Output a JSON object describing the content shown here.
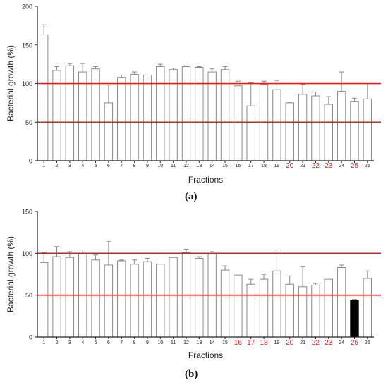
{
  "colors": {
    "bar_fill": "#ffffff",
    "bar_stroke": "#888888",
    "highlight_bar": "#000000",
    "ref_line": "#e01b1b",
    "highlight_label": "#e02020",
    "axis": "#222222"
  },
  "chart_data": [
    {
      "panel_label": "(a)",
      "type": "bar",
      "xlabel": "Fractions",
      "ylabel": "Bacterial growth (%)",
      "ylim": [
        0,
        200
      ],
      "yticks": [
        "0",
        "50",
        "100",
        "150",
        "200"
      ],
      "categories": [
        "1",
        "2",
        "3",
        "4",
        "5",
        "6",
        "7",
        "8",
        "9",
        "10",
        "11",
        "12",
        "13",
        "14",
        "15",
        "16",
        "17",
        "18",
        "19",
        "20",
        "21",
        "22",
        "23",
        "24",
        "25",
        "26"
      ],
      "values": [
        163,
        117,
        123,
        115,
        119,
        75,
        108,
        112,
        111,
        122,
        118,
        122,
        121,
        115,
        118,
        97,
        71,
        99,
        92,
        75,
        86,
        84,
        73,
        90,
        77,
        80
      ],
      "errors": [
        13,
        5,
        3,
        11,
        3,
        23,
        3,
        3,
        0,
        3,
        2,
        1,
        1,
        4,
        4,
        6,
        30,
        4,
        12,
        1,
        13,
        5,
        10,
        25,
        4,
        20
      ],
      "highlighted_categories": [
        "20",
        "22",
        "23",
        "25"
      ],
      "filled_categories": [],
      "reference_lines": [
        100,
        50
      ]
    },
    {
      "panel_label": "(b)",
      "type": "bar",
      "xlabel": "Fractions",
      "ylabel": "Bacterial growth (%)",
      "ylim": [
        0,
        150
      ],
      "yticks": [
        "0",
        "50",
        "100",
        "150"
      ],
      "categories": [
        "1",
        "2",
        "3",
        "4",
        "5",
        "6",
        "7",
        "8",
        "9",
        "10",
        "11",
        "12",
        "13",
        "14",
        "15",
        "16",
        "17",
        "18",
        "19",
        "20",
        "21",
        "22",
        "23",
        "24",
        "25",
        "26"
      ],
      "values": [
        89,
        96,
        95,
        99,
        92,
        86,
        91,
        87,
        90,
        87,
        95,
        101,
        94,
        99,
        80,
        74,
        63,
        69,
        79,
        63,
        60,
        62,
        69,
        83,
        44,
        70
      ],
      "errors": [
        12,
        12,
        7,
        5,
        6,
        28,
        1,
        5,
        4,
        0,
        0,
        4,
        2,
        3,
        5,
        0,
        6,
        6,
        25,
        10,
        24,
        2,
        0,
        3,
        1,
        9
      ],
      "highlighted_categories": [
        "16",
        "17",
        "18",
        "20",
        "22",
        "23",
        "25"
      ],
      "filled_categories": [
        "25"
      ],
      "reference_lines": [
        100,
        50
      ]
    }
  ]
}
